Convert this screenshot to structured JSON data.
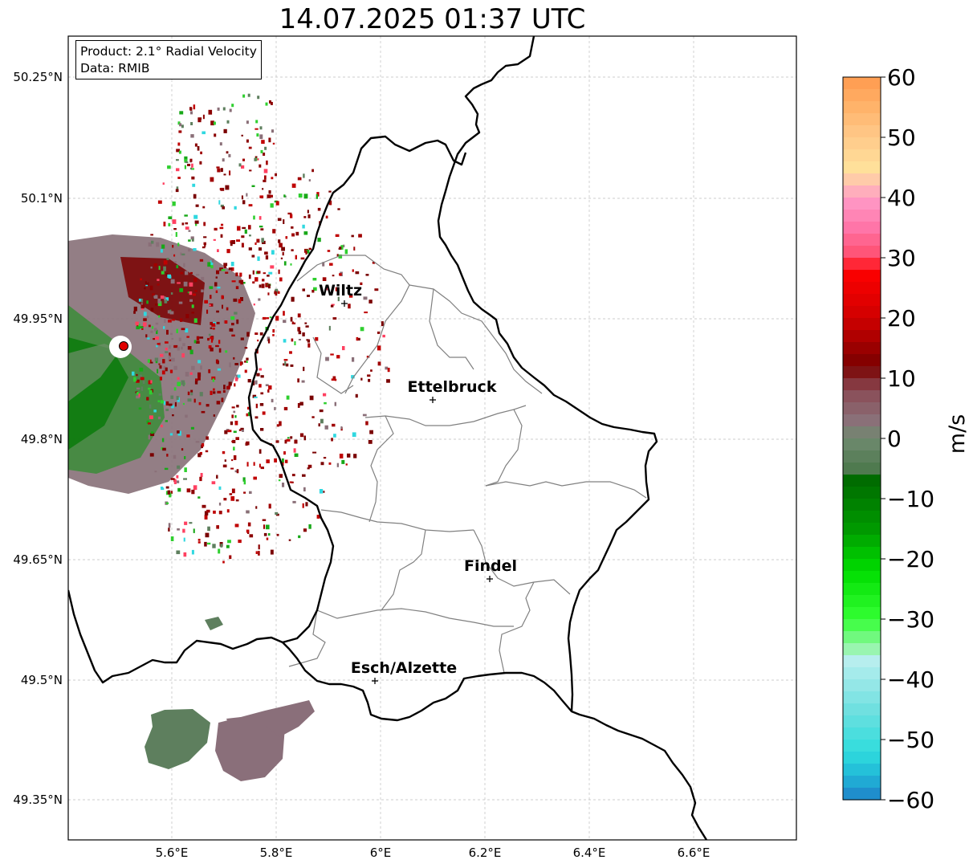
{
  "title": "14.07.2025 01:37 UTC",
  "info": {
    "product": "Product: 2.1° Radial Velocity",
    "data_source": "Data: RMIB"
  },
  "axes": {
    "lon_ticks": [
      "5.6°E",
      "5.8°E",
      "6°E",
      "6.2°E",
      "6.4°E",
      "6.6°E"
    ],
    "lat_ticks": [
      "50.25°N",
      "50.1°N",
      "49.95°N",
      "49.8°N",
      "49.65°N",
      "49.5°N",
      "49.35°N"
    ]
  },
  "cities": [
    {
      "name": "Wiltz"
    },
    {
      "name": "Ettelbruck"
    },
    {
      "name": "Findel"
    },
    {
      "name": "Esch/Alzette"
    }
  ],
  "colorbar": {
    "unit": "m/s",
    "tick_labels": [
      "60",
      "50",
      "40",
      "30",
      "20",
      "10",
      "0",
      "−10",
      "−20",
      "−30",
      "−40",
      "−50",
      "−60"
    ],
    "range": [
      -60,
      60
    ]
  },
  "colors": {
    "radar_site": "#e00000",
    "border": "#000000",
    "cantons": "#808080"
  }
}
